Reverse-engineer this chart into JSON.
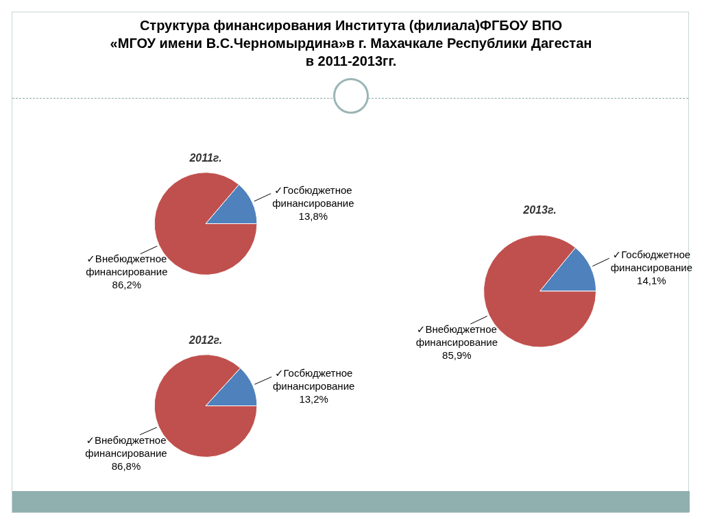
{
  "chart_data": [
    {
      "type": "other",
      "title": "Структура финансирования Института (филиала)ФГБОУ ВПО\n«МГОУ имени В.С.Черномырдина»в г. Махачкале Республики Дагестан\nв 2011-2013гг."
    },
    {
      "type": "pie",
      "title": "2011г.",
      "categories": [
        "✓Госбюджетное финансирование",
        "✓Внебюджетное финансирование"
      ],
      "values": [
        13.8,
        86.2
      ],
      "value_labels": [
        "13,8%",
        "86,2%"
      ],
      "colors": [
        "#4f81bd",
        "#c0504d"
      ],
      "legend": false
    },
    {
      "type": "pie",
      "title": "2012г.",
      "categories": [
        "✓Госбюджетное финансирование",
        "✓Внебюджетное финансирование"
      ],
      "values": [
        13.2,
        86.8
      ],
      "value_labels": [
        "13,2%",
        "86,8%"
      ],
      "colors": [
        "#4f81bd",
        "#c0504d"
      ],
      "legend": false
    },
    {
      "type": "pie",
      "title": "2013г.",
      "categories": [
        "✓Госбюджетное финансирование",
        "✓Внебюджетное финансирование"
      ],
      "values": [
        14.1,
        85.9
      ],
      "value_labels": [
        "14,1%",
        "85,9%"
      ],
      "colors": [
        "#4f81bd",
        "#c0504d"
      ],
      "legend": false
    }
  ]
}
